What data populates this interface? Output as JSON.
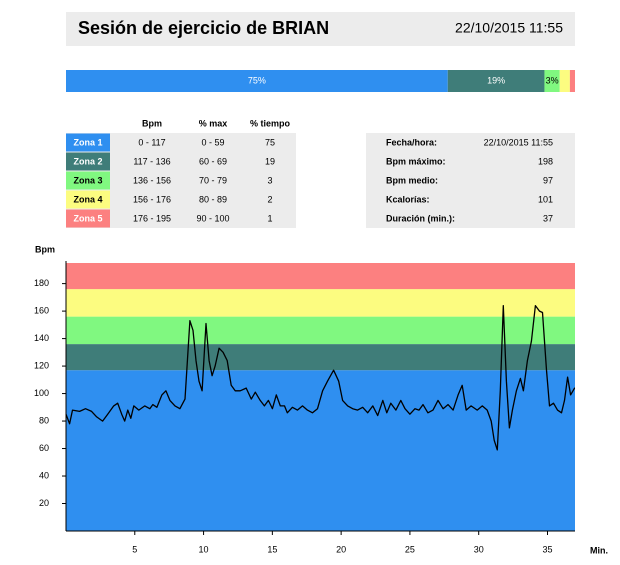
{
  "header": {
    "title": "Sesión de ejercicio de BRIAN",
    "datetime": "22/10/2015 11:55"
  },
  "time_bar": {
    "labels": [
      "75%",
      "19%",
      "3%"
    ]
  },
  "zones_table": {
    "columns": [
      "Bpm",
      "% max",
      "% tiempo"
    ],
    "rows": [
      {
        "zone": "Zona 1",
        "bpm": "0 - 117",
        "pct_max": "0 - 59",
        "time": 75,
        "color": "#2f8ff0"
      },
      {
        "zone": "Zona 2",
        "bpm": "117 - 136",
        "pct_max": "60 - 69",
        "time": 19,
        "color": "#3f7d79"
      },
      {
        "zone": "Zona 3",
        "bpm": "136 - 156",
        "pct_max": "70 - 79",
        "time": 3,
        "color": "#80f880"
      },
      {
        "zone": "Zona 4",
        "bpm": "156 - 176",
        "pct_max": "80 - 89",
        "time": 2,
        "color": "#fcfc80"
      },
      {
        "zone": "Zona 5",
        "bpm": "176 - 195",
        "pct_max": "90 - 100",
        "time": 1,
        "color": "#fc8080"
      }
    ]
  },
  "summary": {
    "rows": [
      [
        "Fecha/hora:",
        "22/10/2015 11:55"
      ],
      [
        "Bpm máximo:",
        198
      ],
      [
        "Bpm medio:",
        97
      ],
      [
        "Kcalorías:",
        101
      ],
      [
        "Duración (min.):",
        37
      ]
    ]
  },
  "chart_data": {
    "type": "line",
    "y_label": "Bpm",
    "x_label": "Min.",
    "x": [
      0,
      0.26,
      0.47,
      0.99,
      1.42,
      1.86,
      2.23,
      2.66,
      3.03,
      3.47,
      3.76,
      4.05,
      4.27,
      4.49,
      4.71,
      4.93,
      5.29,
      5.73,
      6.09,
      6.31,
      6.61,
      6.97,
      7.26,
      7.55,
      7.92,
      8.28,
      8.65,
      9.01,
      9.23,
      9.45,
      9.67,
      9.89,
      10.18,
      10.4,
      10.62,
      10.84,
      11.13,
      11.42,
      11.72,
      12.01,
      12.3,
      12.66,
      13.1,
      13.47,
      13.76,
      14.12,
      14.42,
      14.71,
      15,
      15.29,
      15.58,
      15.88,
      16.09,
      16.46,
      16.82,
      17.19,
      17.55,
      17.92,
      18.28,
      18.65,
      19.01,
      19.45,
      19.82,
      20.11,
      20.48,
      20.84,
      21.2,
      21.57,
      21.93,
      22.3,
      22.66,
      23.03,
      23.32,
      23.61,
      23.98,
      24.34,
      24.64,
      25,
      25.37,
      25.66,
      25.95,
      26.31,
      26.68,
      27.04,
      27.41,
      27.77,
      28.14,
      28.5,
      28.8,
      29.09,
      29.45,
      29.89,
      30.26,
      30.62,
      30.91,
      31.13,
      31.35,
      31.57,
      31.79,
      32.01,
      32.23,
      32.45,
      32.74,
      33.03,
      33.25,
      33.54,
      33.83,
      34.12,
      34.42,
      34.64,
      34.93,
      35.15,
      35.44,
      35.73,
      36.02,
      36.24,
      36.46,
      36.68,
      36.97,
      37
    ],
    "series": [
      {
        "color": "#000000",
        "values": [
          85,
          78,
          88,
          87,
          89,
          87,
          83,
          80,
          85,
          91,
          93,
          85,
          80,
          88,
          82,
          91,
          88,
          91,
          89,
          92,
          90,
          99,
          102,
          95,
          91,
          89,
          96,
          153,
          146,
          124,
          109,
          102,
          151,
          124,
          113,
          120,
          133,
          130,
          124,
          106,
          102,
          102,
          104,
          96,
          101,
          95,
          91,
          95,
          89,
          99,
          91,
          91,
          86,
          90,
          88,
          91,
          88,
          86,
          89,
          102,
          109,
          117,
          109,
          95,
          91,
          89,
          88,
          90,
          86,
          91,
          84,
          95,
          86,
          93,
          88,
          95,
          89,
          85,
          89,
          88,
          92,
          86,
          88,
          95,
          89,
          92,
          88,
          99,
          106,
          88,
          91,
          88,
          91,
          88,
          80,
          66,
          59,
          102,
          164,
          109,
          75,
          88,
          102,
          111,
          102,
          124,
          138,
          164,
          160,
          159,
          117,
          91,
          93,
          88,
          86,
          95,
          112,
          99,
          104,
          104
        ]
      }
    ],
    "bands": [
      {
        "from": 0,
        "to": 117,
        "color": "#2f8ff0"
      },
      {
        "from": 117,
        "to": 136,
        "color": "#3f7d79"
      },
      {
        "from": 136,
        "to": 156,
        "color": "#80f880"
      },
      {
        "from": 156,
        "to": 176,
        "color": "#fcfc80"
      },
      {
        "from": 176,
        "to": 195,
        "color": "#fc8080"
      }
    ],
    "xlim": [
      0,
      37
    ],
    "ylim": [
      0,
      195
    ],
    "xticks": [
      5,
      10,
      15,
      20,
      25,
      30,
      35
    ],
    "yticks": [
      20,
      40,
      60,
      80,
      100,
      120,
      140,
      160,
      180
    ]
  }
}
